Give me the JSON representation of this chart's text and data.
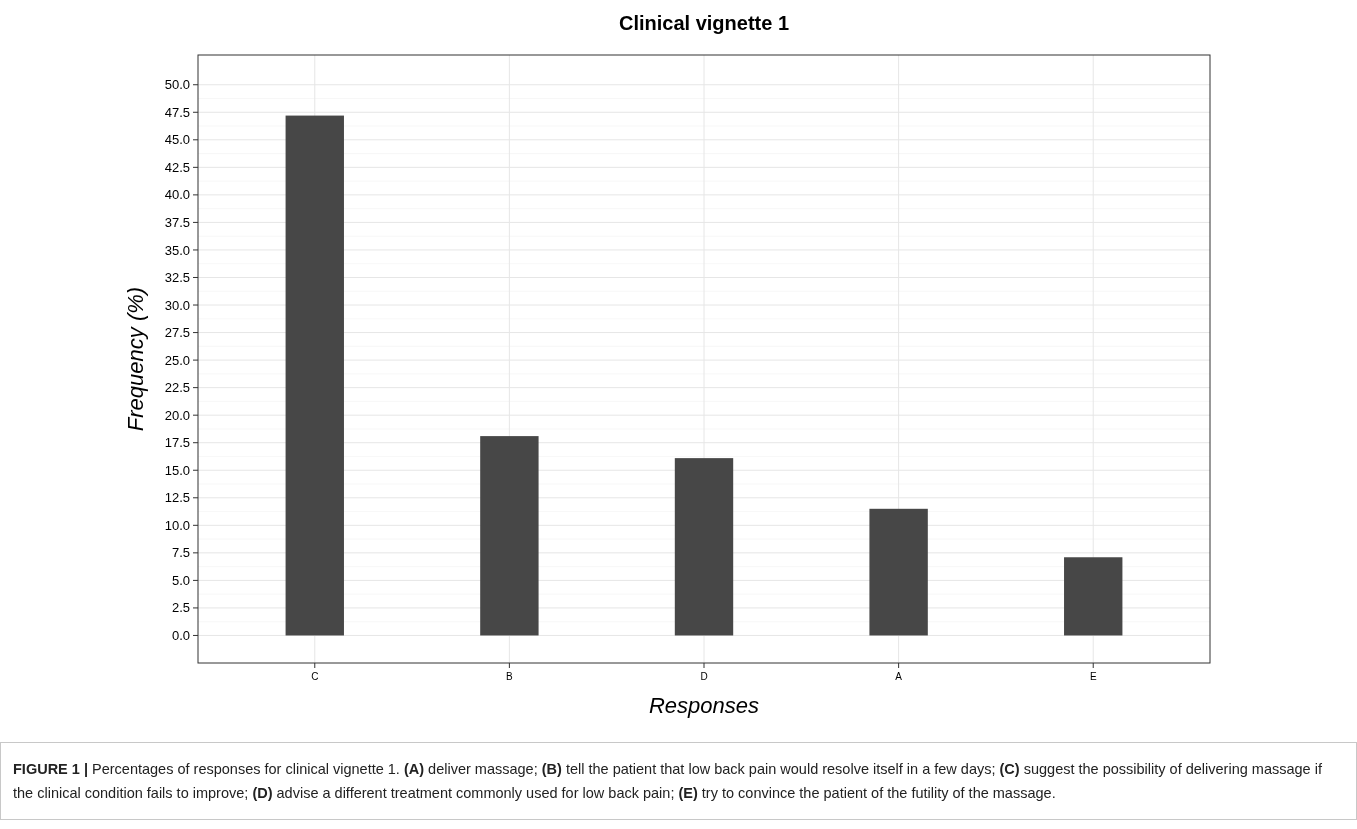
{
  "chart_data": {
    "type": "bar",
    "title": "Clinical vignette 1",
    "xlabel": "Responses",
    "ylabel": "Frequency (%)",
    "categories": [
      "C",
      "B",
      "D",
      "A",
      "E"
    ],
    "values": [
      47.2,
      18.1,
      16.1,
      11.5,
      7.1
    ],
    "color": "#474747",
    "ylim": [
      -2.5,
      52.7
    ],
    "yticks": [
      {
        "value": 0,
        "label": "0.0"
      },
      {
        "value": 2.5,
        "label": "2.5"
      },
      {
        "value": 5,
        "label": "5.0"
      },
      {
        "value": 7.5,
        "label": "7.5"
      },
      {
        "value": 10,
        "label": "10.0"
      },
      {
        "value": 12.5,
        "label": "12.5"
      },
      {
        "value": 15,
        "label": "15.0"
      },
      {
        "value": 17.5,
        "label": "17.5"
      },
      {
        "value": 20,
        "label": "20.0"
      },
      {
        "value": 22.5,
        "label": "22.5"
      },
      {
        "value": 25,
        "label": "25.0"
      },
      {
        "value": 27.5,
        "label": "27.5"
      },
      {
        "value": 30,
        "label": "30.0"
      },
      {
        "value": 32.5,
        "label": "32.5"
      },
      {
        "value": 35,
        "label": "35.0"
      },
      {
        "value": 37.5,
        "label": "37.5"
      },
      {
        "value": 40,
        "label": "40.0"
      },
      {
        "value": 42.5,
        "label": "42.5"
      },
      {
        "value": 45,
        "label": "45.0"
      },
      {
        "value": 47.5,
        "label": "47.5"
      },
      {
        "value": 50,
        "label": "50.0"
      }
    ],
    "grid": true,
    "annotations": [
      "FIGURE 1 | Percentages of responses for clinical vignette 1. (A) deliver massage; (B) tell the patient that low back pain would resolve itself in a few days; (C) suggest the possibility of delivering massage if the clinical condition fails to improve; (D) advise a different treatment commonly used for low back pain; (E) try to convince the patient of the futility of the massage."
    ]
  }
}
